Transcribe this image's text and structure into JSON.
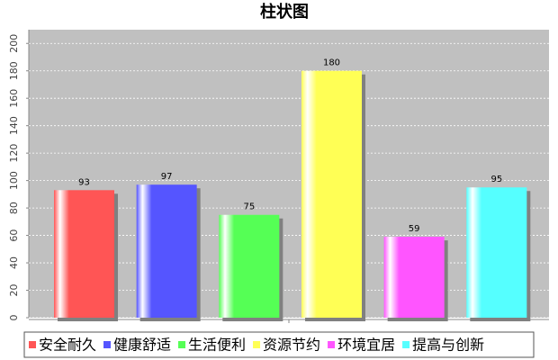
{
  "chart_data": {
    "type": "bar",
    "title": "柱状图",
    "categories": [
      null
    ],
    "series": [
      {
        "name": "安全耐久",
        "color": "#ff5555",
        "values": [
          93
        ]
      },
      {
        "name": "健康舒适",
        "color": "#5555ff",
        "values": [
          97
        ]
      },
      {
        "name": "生活便利",
        "color": "#55ff55",
        "values": [
          75
        ]
      },
      {
        "name": "资源节约",
        "color": "#ffff55",
        "values": [
          180
        ]
      },
      {
        "name": "环境宜居",
        "color": "#ff55ff",
        "values": [
          59
        ]
      },
      {
        "name": "提高与创新",
        "color": "#55ffff",
        "values": [
          95
        ]
      }
    ],
    "ylim": [
      0,
      210
    ],
    "yticks": [
      0,
      20,
      40,
      60,
      80,
      100,
      120,
      140,
      160,
      180,
      200
    ],
    "grid": true,
    "legend": "bottom"
  }
}
